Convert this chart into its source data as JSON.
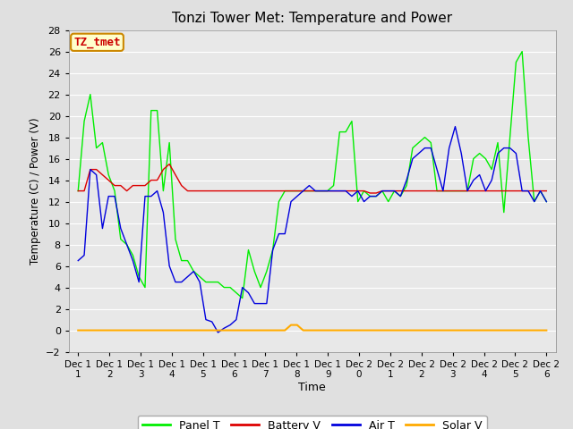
{
  "title": "Tonzi Tower Met: Temperature and Power",
  "ylabel": "Temperature (C) / Power (V)",
  "xlabel": "Time",
  "ylim": [
    -2,
    28
  ],
  "yticks": [
    -2,
    0,
    2,
    4,
    6,
    8,
    10,
    12,
    14,
    16,
    18,
    20,
    22,
    24,
    26,
    28
  ],
  "annotation_label": "TZ_tmet",
  "annotation_color_bg": "#ffffcc",
  "annotation_color_border": "#cc8800",
  "annotation_color_text": "#cc0000",
  "bg_color": "#e0e0e0",
  "plot_bg_color": "#e8e8e8",
  "grid_color": "#ffffff",
  "colors": {
    "panel_t": "#00ee00",
    "battery_v": "#dd0000",
    "air_t": "#0000dd",
    "solar_v": "#ffaa00"
  },
  "legend": [
    "Panel T",
    "Battery V",
    "Air T",
    "Solar V"
  ],
  "x_tick_labels": [
    "Dec 11",
    "Dec 12",
    "Dec 13",
    "Dec 14",
    "Dec 15",
    "Dec 16",
    "Dec 17",
    "Dec 18",
    "Dec 19",
    "Dec 20",
    "Dec 21",
    "Dec 22",
    "Dec 23",
    "Dec 24",
    "Dec 25",
    "Dec 26"
  ],
  "panel_t": [
    13.0,
    19.5,
    22.0,
    17.0,
    17.5,
    14.5,
    13.0,
    8.5,
    8.0,
    7.0,
    5.0,
    4.0,
    20.5,
    20.5,
    13.0,
    17.5,
    8.5,
    6.5,
    6.5,
    5.5,
    5.0,
    4.5,
    4.5,
    4.5,
    4.0,
    4.0,
    3.5,
    3.0,
    7.5,
    5.5,
    4.0,
    5.5,
    7.5,
    12.0,
    13.0,
    13.0,
    13.0,
    13.0,
    13.0,
    13.0,
    13.0,
    13.0,
    13.5,
    18.5,
    18.5,
    19.5,
    12.0,
    13.0,
    12.5,
    12.5,
    13.0,
    12.0,
    13.0,
    12.5,
    13.5,
    17.0,
    17.5,
    18.0,
    17.5,
    13.0,
    13.0,
    13.0,
    13.0,
    13.0,
    13.0,
    16.0,
    16.5,
    16.0,
    15.0,
    17.5,
    11.0,
    18.0,
    25.0,
    26.0,
    18.0,
    12.0,
    13.0,
    12.0
  ],
  "battery_v": [
    13.0,
    13.0,
    15.0,
    15.0,
    14.5,
    14.0,
    13.5,
    13.5,
    13.0,
    13.5,
    13.5,
    13.5,
    14.0,
    14.0,
    15.0,
    15.5,
    14.5,
    13.5,
    13.0,
    13.0,
    13.0,
    13.0,
    13.0,
    13.0,
    13.0,
    13.0,
    13.0,
    13.0,
    13.0,
    13.0,
    13.0,
    13.0,
    13.0,
    13.0,
    13.0,
    13.0,
    13.0,
    13.0,
    13.0,
    13.0,
    13.0,
    13.0,
    13.0,
    13.0,
    13.0,
    13.0,
    13.0,
    13.0,
    12.8,
    12.8,
    13.0,
    13.0,
    13.0,
    13.0,
    13.0,
    13.0,
    13.0,
    13.0,
    13.0,
    13.0,
    13.0,
    13.0,
    13.0,
    13.0,
    13.0,
    13.0,
    13.0,
    13.0,
    13.0,
    13.0,
    13.0,
    13.0,
    13.0,
    13.0,
    13.0,
    13.0,
    13.0,
    13.0
  ],
  "air_t": [
    6.5,
    7.0,
    15.0,
    14.5,
    9.5,
    12.5,
    12.5,
    9.5,
    8.0,
    6.5,
    4.5,
    12.5,
    12.5,
    13.0,
    11.0,
    6.0,
    4.5,
    4.5,
    5.0,
    5.5,
    4.5,
    1.0,
    0.8,
    -0.2,
    0.2,
    0.5,
    1.0,
    4.0,
    3.5,
    2.5,
    2.5,
    2.5,
    7.5,
    9.0,
    9.0,
    12.0,
    12.5,
    13.0,
    13.5,
    13.0,
    13.0,
    13.0,
    13.0,
    13.0,
    13.0,
    12.5,
    13.0,
    12.0,
    12.5,
    12.5,
    13.0,
    13.0,
    13.0,
    12.5,
    14.0,
    16.0,
    16.5,
    17.0,
    17.0,
    15.0,
    13.0,
    17.0,
    19.0,
    16.5,
    13.0,
    14.0,
    14.5,
    13.0,
    14.0,
    16.5,
    17.0,
    17.0,
    16.5,
    13.0,
    13.0,
    12.0,
    13.0,
    12.0
  ],
  "solar_v": [
    0,
    0,
    0,
    0,
    0,
    0,
    0,
    0,
    0,
    0,
    0,
    0,
    0,
    0,
    0,
    0,
    0,
    0,
    0,
    0,
    0,
    0,
    0,
    0,
    0,
    0,
    0,
    0,
    0,
    0,
    0,
    0,
    0,
    0,
    0,
    0.5,
    0.5,
    0,
    0,
    0,
    0,
    0,
    0,
    0,
    0,
    0,
    0,
    0,
    0,
    0,
    0,
    0,
    0,
    0,
    0,
    0,
    0,
    0,
    0,
    0,
    0,
    0,
    0,
    0,
    0,
    0,
    0,
    0,
    0,
    0,
    0,
    0,
    0,
    0,
    0,
    0,
    0,
    0
  ]
}
